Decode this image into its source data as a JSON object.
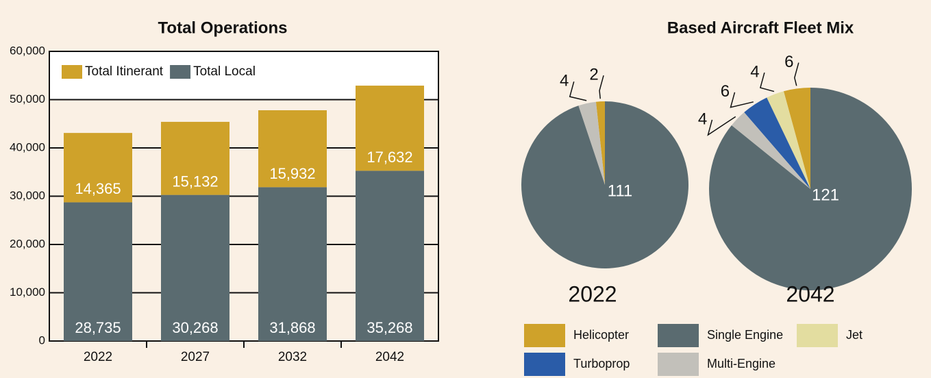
{
  "chart_data": [
    {
      "type": "bar",
      "title": "Total Operations",
      "categories": [
        "2022",
        "2027",
        "2032",
        "2042"
      ],
      "series": [
        {
          "name": "Total Itinerant",
          "color": "#cfa22a",
          "values": [
            14365,
            15132,
            15932,
            17632
          ],
          "value_labels": [
            "14,365",
            "15,132",
            "15,932",
            "17,632"
          ]
        },
        {
          "name": "Total Local",
          "color": "#5a6b70",
          "values": [
            28735,
            30268,
            31868,
            35268
          ],
          "value_labels": [
            "28,735",
            "30,268",
            "31,868",
            "35,268"
          ]
        }
      ],
      "stacked": true,
      "ylim": [
        0,
        60000
      ],
      "yticks": [
        0,
        {
          "value": 10000,
          "label": "10,000"
        },
        {
          "value": 20000,
          "label": "20,000"
        },
        {
          "value": 30000,
          "label": "30,000"
        },
        {
          "value": 40000,
          "label": "40,000"
        },
        {
          "value": 50000,
          "label": "50,000"
        },
        {
          "value": 60000,
          "label": "60,000"
        }
      ],
      "grid": true,
      "legend": "top-left"
    },
    {
      "type": "pie",
      "title": "Based Aircraft Fleet Mix",
      "categories": [
        "Helicopter",
        "Jet",
        "Turboprop",
        "Multi-Engine",
        "Single Engine"
      ],
      "colors": [
        "#cfa22a",
        "#e3dda0",
        "#2a5ca8",
        "#c2c0ba",
        "#5a6b70"
      ],
      "pies": [
        {
          "name": "2022",
          "values": [
            2,
            0,
            0,
            4,
            111
          ]
        },
        {
          "name": "2042",
          "values": [
            6,
            4,
            6,
            4,
            121
          ]
        }
      ],
      "legend": "bottom"
    }
  ]
}
